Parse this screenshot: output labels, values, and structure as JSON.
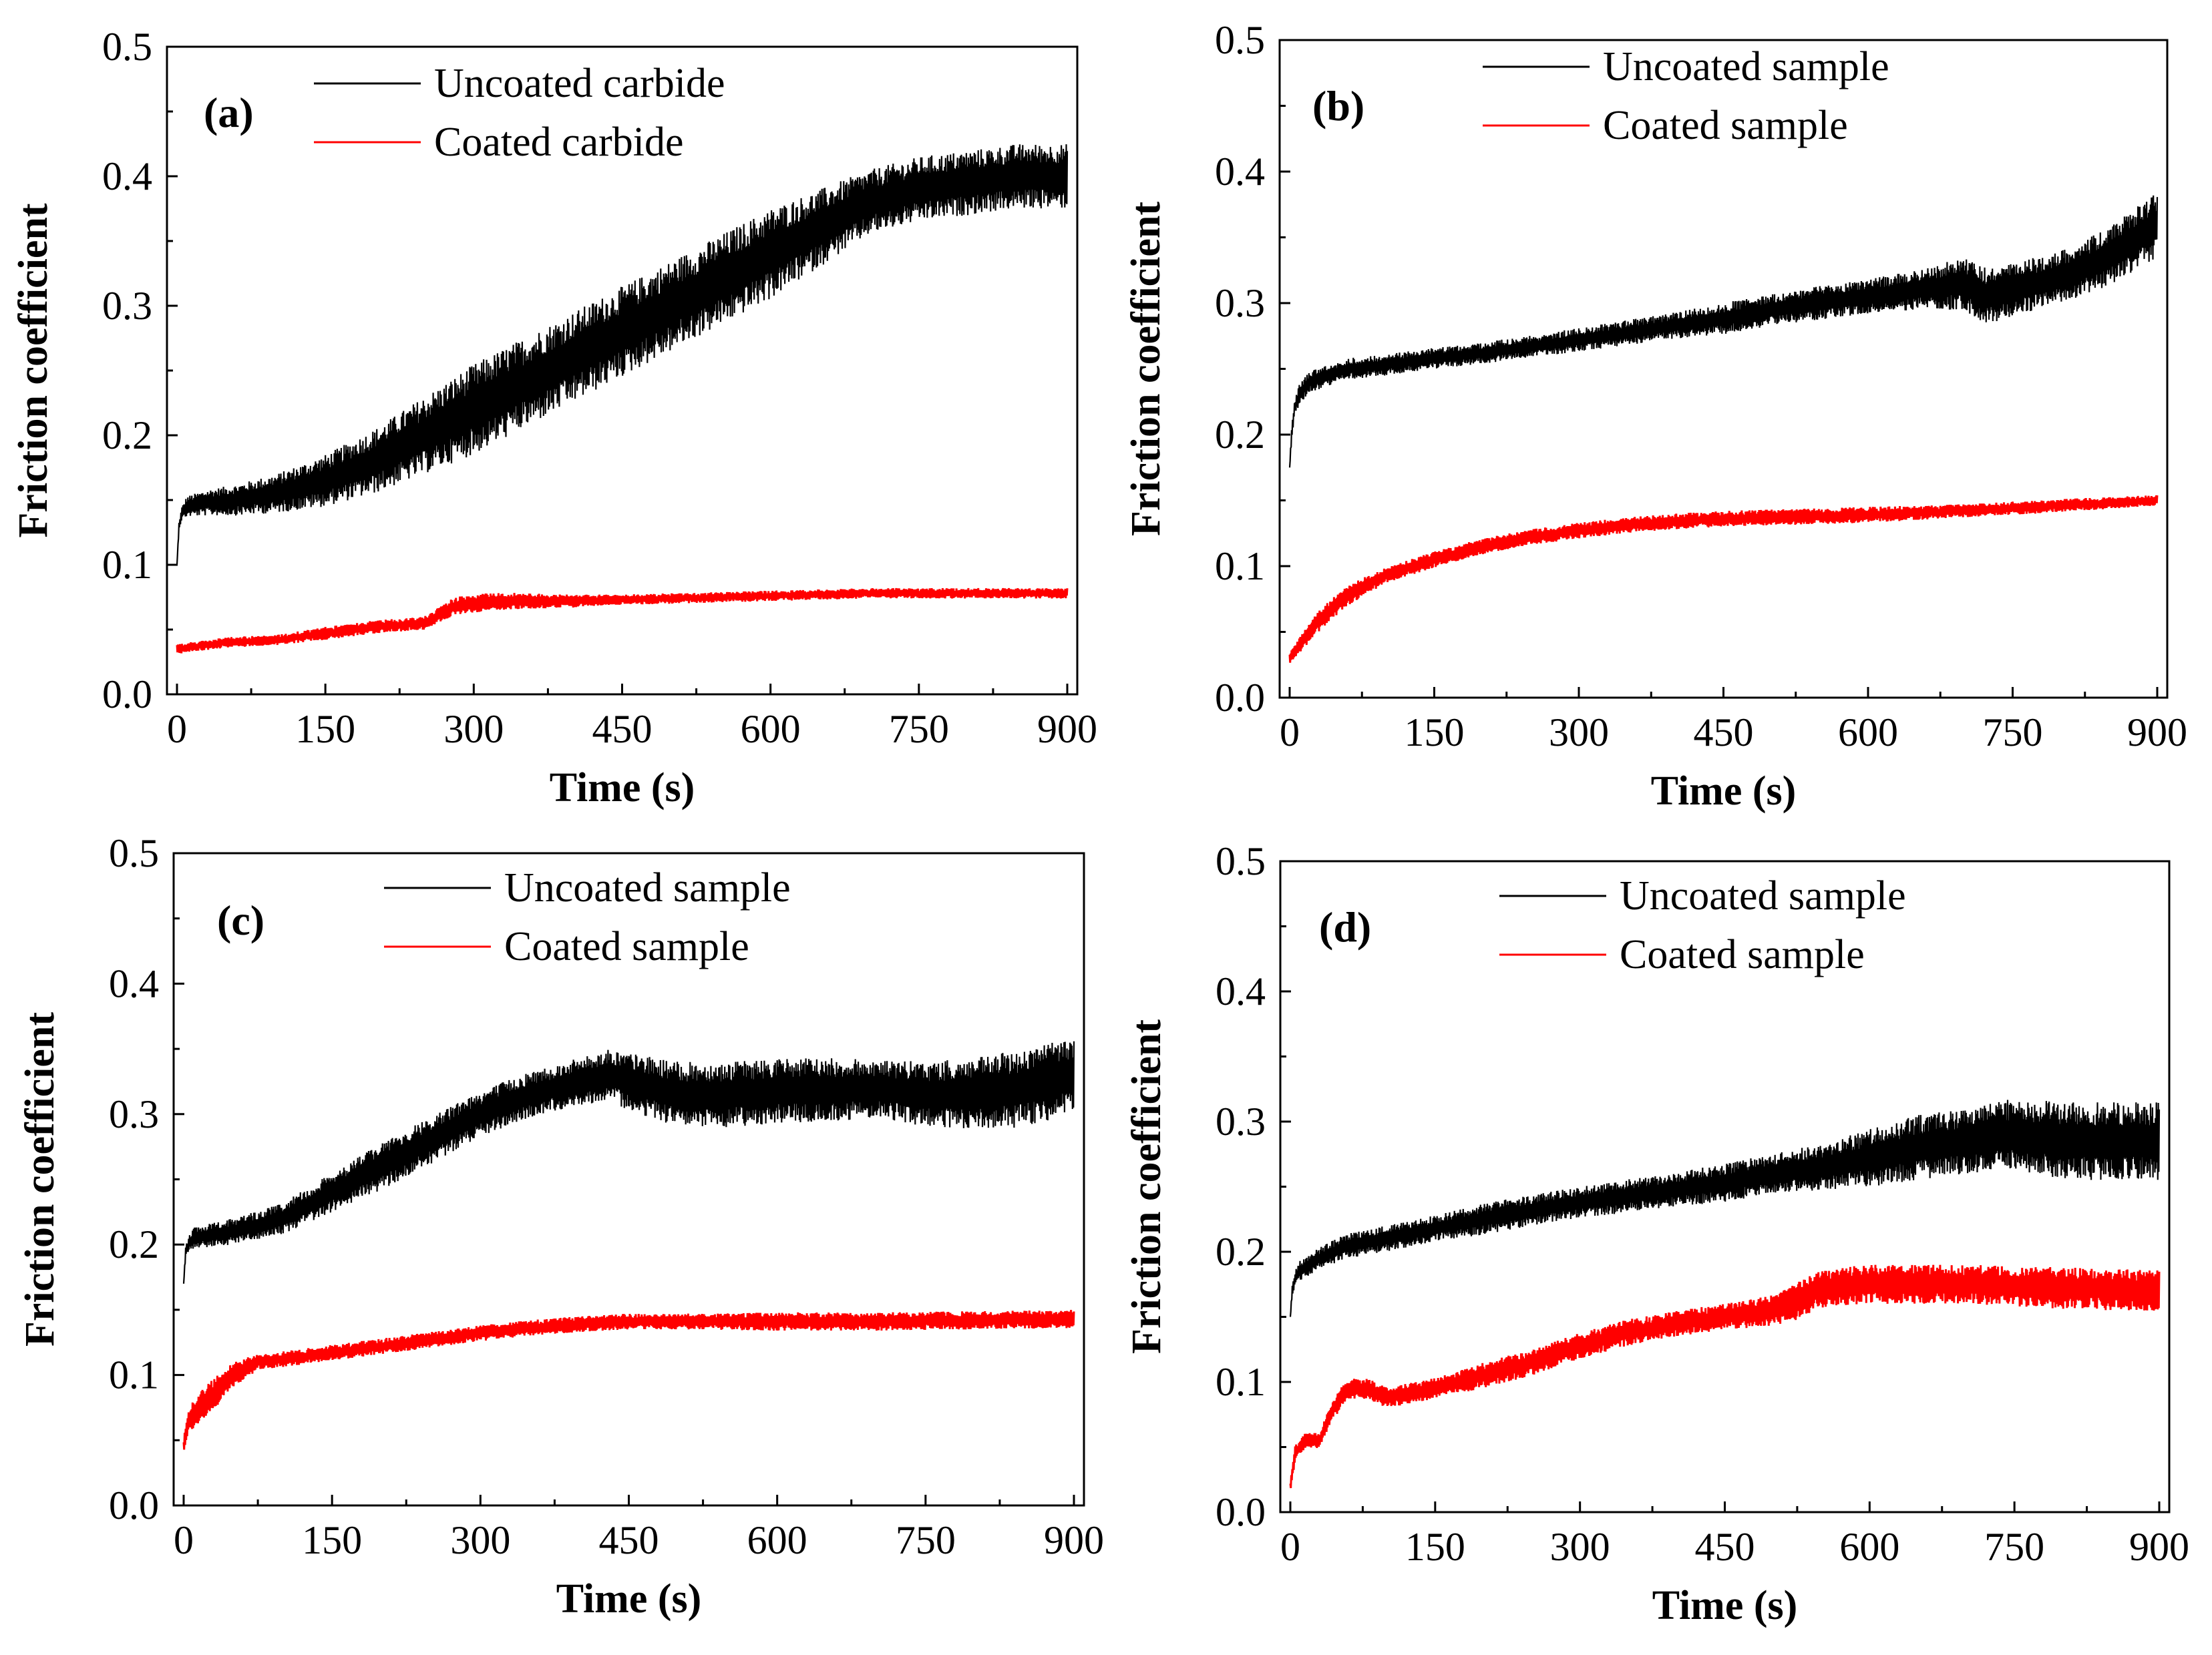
{
  "figure": {
    "colors": {
      "uncoated": "#000000",
      "coated": "#ff0000",
      "axis": "#000000"
    }
  },
  "chart_data": [
    {
      "type": "line",
      "panel_label": "(a)",
      "xlabel": "Time (s)",
      "ylabel": "Friction coefficient",
      "xlim": [
        0,
        900
      ],
      "ylim": [
        0.0,
        0.5
      ],
      "xticks": [
        0,
        150,
        300,
        450,
        600,
        750,
        900
      ],
      "xtick_labels": [
        "0",
        "150",
        "300",
        "450",
        "600",
        "750",
        "900"
      ],
      "yticks": [
        0.0,
        0.1,
        0.2,
        0.3,
        0.4,
        0.5
      ],
      "ytick_labels": [
        "0.0",
        "0.1",
        "0.2",
        "0.3",
        "0.4",
        "0.5"
      ],
      "legend_position": "top-left",
      "series": [
        {
          "name": "Uncoated carbide",
          "color": "#000000",
          "x": [
            0,
            2,
            5,
            10,
            30,
            60,
            100,
            150,
            200,
            250,
            300,
            350,
            400,
            450,
            500,
            550,
            600,
            650,
            700,
            750,
            800,
            850,
            900
          ],
          "y": [
            0.1,
            0.13,
            0.14,
            0.145,
            0.148,
            0.15,
            0.155,
            0.165,
            0.18,
            0.2,
            0.22,
            0.24,
            0.26,
            0.28,
            0.3,
            0.32,
            0.34,
            0.36,
            0.38,
            0.39,
            0.395,
            0.4,
            0.4
          ],
          "noise": [
            0.0,
            0.003,
            0.005,
            0.008,
            0.01,
            0.012,
            0.015,
            0.02,
            0.025,
            0.03,
            0.035,
            0.035,
            0.035,
            0.035,
            0.035,
            0.035,
            0.035,
            0.03,
            0.025,
            0.025,
            0.025,
            0.025,
            0.025
          ]
        },
        {
          "name": "Coated carbide",
          "color": "#ff0000",
          "x": [
            0,
            50,
            100,
            150,
            200,
            250,
            280,
            320,
            350,
            400,
            450,
            500,
            600,
            700,
            800,
            900
          ],
          "y": [
            0.035,
            0.04,
            0.042,
            0.047,
            0.052,
            0.055,
            0.068,
            0.072,
            0.072,
            0.072,
            0.073,
            0.074,
            0.076,
            0.078,
            0.078,
            0.078
          ],
          "noise": [
            0.004,
            0.004,
            0.004,
            0.005,
            0.005,
            0.005,
            0.007,
            0.007,
            0.006,
            0.005,
            0.004,
            0.004,
            0.004,
            0.004,
            0.004,
            0.004
          ]
        }
      ]
    },
    {
      "type": "line",
      "panel_label": "(b)",
      "xlabel": "Time (s)",
      "ylabel": "Friction coefficient",
      "xlim": [
        0,
        900
      ],
      "ylim": [
        0.0,
        0.5
      ],
      "xticks": [
        0,
        150,
        300,
        450,
        600,
        750,
        900
      ],
      "xtick_labels": [
        "0",
        "150",
        "300",
        "450",
        "600",
        "750",
        "900"
      ],
      "yticks": [
        0.0,
        0.1,
        0.2,
        0.3,
        0.4,
        0.5
      ],
      "ytick_labels": [
        "0.0",
        "0.1",
        "0.2",
        "0.3",
        "0.4",
        "0.5"
      ],
      "legend_position": "top-center",
      "series": [
        {
          "name": "Uncoated sample",
          "color": "#000000",
          "x": [
            0,
            2,
            5,
            10,
            20,
            40,
            60,
            100,
            150,
            200,
            300,
            400,
            450,
            500,
            550,
            600,
            650,
            700,
            720,
            750,
            800,
            850,
            900
          ],
          "y": [
            0.175,
            0.2,
            0.22,
            0.23,
            0.24,
            0.245,
            0.25,
            0.253,
            0.258,
            0.262,
            0.272,
            0.283,
            0.288,
            0.295,
            0.3,
            0.305,
            0.31,
            0.315,
            0.305,
            0.31,
            0.32,
            0.335,
            0.36
          ],
          "noise": [
            0.0,
            0.005,
            0.006,
            0.008,
            0.008,
            0.008,
            0.008,
            0.008,
            0.008,
            0.008,
            0.009,
            0.01,
            0.012,
            0.012,
            0.013,
            0.013,
            0.015,
            0.02,
            0.022,
            0.02,
            0.02,
            0.022,
            0.025
          ]
        },
        {
          "name": "Coated sample",
          "color": "#ff0000",
          "x": [
            0,
            10,
            30,
            60,
            100,
            150,
            200,
            250,
            300,
            350,
            400,
            450,
            500,
            600,
            700,
            800,
            900
          ],
          "y": [
            0.03,
            0.04,
            0.058,
            0.078,
            0.093,
            0.105,
            0.115,
            0.122,
            0.127,
            0.131,
            0.134,
            0.136,
            0.137,
            0.139,
            0.142,
            0.146,
            0.15
          ],
          "noise": [
            0.004,
            0.006,
            0.008,
            0.008,
            0.006,
            0.006,
            0.006,
            0.006,
            0.006,
            0.006,
            0.006,
            0.006,
            0.006,
            0.006,
            0.005,
            0.005,
            0.004
          ]
        }
      ]
    },
    {
      "type": "line",
      "panel_label": "(c)",
      "xlabel": "Time (s)",
      "ylabel": "Friction coefficient",
      "xlim": [
        0,
        900
      ],
      "ylim": [
        0.0,
        0.5
      ],
      "xticks": [
        0,
        150,
        300,
        450,
        600,
        750,
        900
      ],
      "xtick_labels": [
        "0",
        "150",
        "300",
        "450",
        "600",
        "750",
        "900"
      ],
      "yticks": [
        0.0,
        0.1,
        0.2,
        0.3,
        0.4,
        0.5
      ],
      "ytick_labels": [
        "0.0",
        "0.1",
        "0.2",
        "0.3",
        "0.4",
        "0.5"
      ],
      "legend_position": "top-center",
      "series": [
        {
          "name": "Uncoated sample",
          "color": "#000000",
          "x": [
            0,
            2,
            5,
            10,
            50,
            100,
            150,
            200,
            250,
            300,
            350,
            400,
            430,
            450,
            500,
            550,
            600,
            650,
            700,
            750,
            800,
            850,
            900
          ],
          "y": [
            0.17,
            0.195,
            0.2,
            0.205,
            0.21,
            0.22,
            0.24,
            0.26,
            0.28,
            0.3,
            0.315,
            0.325,
            0.33,
            0.325,
            0.315,
            0.315,
            0.318,
            0.318,
            0.32,
            0.315,
            0.315,
            0.32,
            0.33
          ],
          "noise": [
            0.0,
            0.005,
            0.006,
            0.008,
            0.01,
            0.012,
            0.015,
            0.018,
            0.018,
            0.018,
            0.018,
            0.018,
            0.02,
            0.022,
            0.025,
            0.025,
            0.025,
            0.025,
            0.022,
            0.025,
            0.028,
            0.03,
            0.03
          ]
        },
        {
          "name": "Coated sample",
          "color": "#ff0000",
          "x": [
            0,
            5,
            15,
            30,
            50,
            75,
            100,
            150,
            200,
            250,
            300,
            350,
            400,
            450,
            500,
            600,
            700,
            800,
            900
          ],
          "y": [
            0.045,
            0.065,
            0.075,
            0.085,
            0.1,
            0.11,
            0.112,
            0.117,
            0.122,
            0.127,
            0.132,
            0.136,
            0.139,
            0.141,
            0.141,
            0.141,
            0.141,
            0.142,
            0.143
          ],
          "noise": [
            0.006,
            0.01,
            0.012,
            0.012,
            0.01,
            0.006,
            0.006,
            0.006,
            0.006,
            0.006,
            0.006,
            0.006,
            0.006,
            0.006,
            0.006,
            0.007,
            0.007,
            0.007,
            0.007
          ]
        }
      ]
    },
    {
      "type": "line",
      "panel_label": "(d)",
      "xlabel": "Time (s)",
      "ylabel": "Friction coefficient",
      "xlim": [
        0,
        900
      ],
      "ylim": [
        0.0,
        0.5
      ],
      "xticks": [
        0,
        150,
        300,
        450,
        600,
        750,
        900
      ],
      "xtick_labels": [
        "0",
        "150",
        "300",
        "450",
        "600",
        "750",
        "900"
      ],
      "yticks": [
        0.0,
        0.1,
        0.2,
        0.3,
        0.4,
        0.5
      ],
      "ytick_labels": [
        "0.0",
        "0.1",
        "0.2",
        "0.3",
        "0.4",
        "0.5"
      ],
      "legend_position": "top-center",
      "series": [
        {
          "name": "Uncoated sample",
          "color": "#000000",
          "x": [
            0,
            2,
            5,
            10,
            30,
            60,
            100,
            150,
            200,
            250,
            300,
            350,
            400,
            450,
            500,
            550,
            600,
            650,
            700,
            750,
            800,
            850,
            900
          ],
          "y": [
            0.15,
            0.17,
            0.18,
            0.185,
            0.195,
            0.205,
            0.21,
            0.218,
            0.225,
            0.232,
            0.238,
            0.243,
            0.248,
            0.253,
            0.26,
            0.265,
            0.272,
            0.28,
            0.285,
            0.29,
            0.285,
            0.285,
            0.285
          ],
          "noise": [
            0.0,
            0.004,
            0.006,
            0.008,
            0.008,
            0.01,
            0.01,
            0.01,
            0.012,
            0.012,
            0.012,
            0.013,
            0.013,
            0.015,
            0.015,
            0.018,
            0.022,
            0.025,
            0.025,
            0.028,
            0.03,
            0.03,
            0.03
          ]
        },
        {
          "name": "Coated sample",
          "color": "#ff0000",
          "x": [
            0,
            5,
            15,
            30,
            45,
            60,
            80,
            100,
            150,
            200,
            250,
            300,
            350,
            400,
            450,
            500,
            520,
            550,
            600,
            700,
            800,
            900
          ],
          "y": [
            0.02,
            0.045,
            0.055,
            0.055,
            0.08,
            0.095,
            0.095,
            0.088,
            0.095,
            0.105,
            0.115,
            0.128,
            0.138,
            0.145,
            0.15,
            0.155,
            0.16,
            0.172,
            0.175,
            0.175,
            0.172,
            0.17
          ],
          "noise": [
            0.004,
            0.006,
            0.006,
            0.006,
            0.008,
            0.008,
            0.008,
            0.008,
            0.008,
            0.01,
            0.01,
            0.01,
            0.01,
            0.01,
            0.01,
            0.012,
            0.014,
            0.015,
            0.015,
            0.015,
            0.016,
            0.016
          ]
        }
      ]
    }
  ]
}
